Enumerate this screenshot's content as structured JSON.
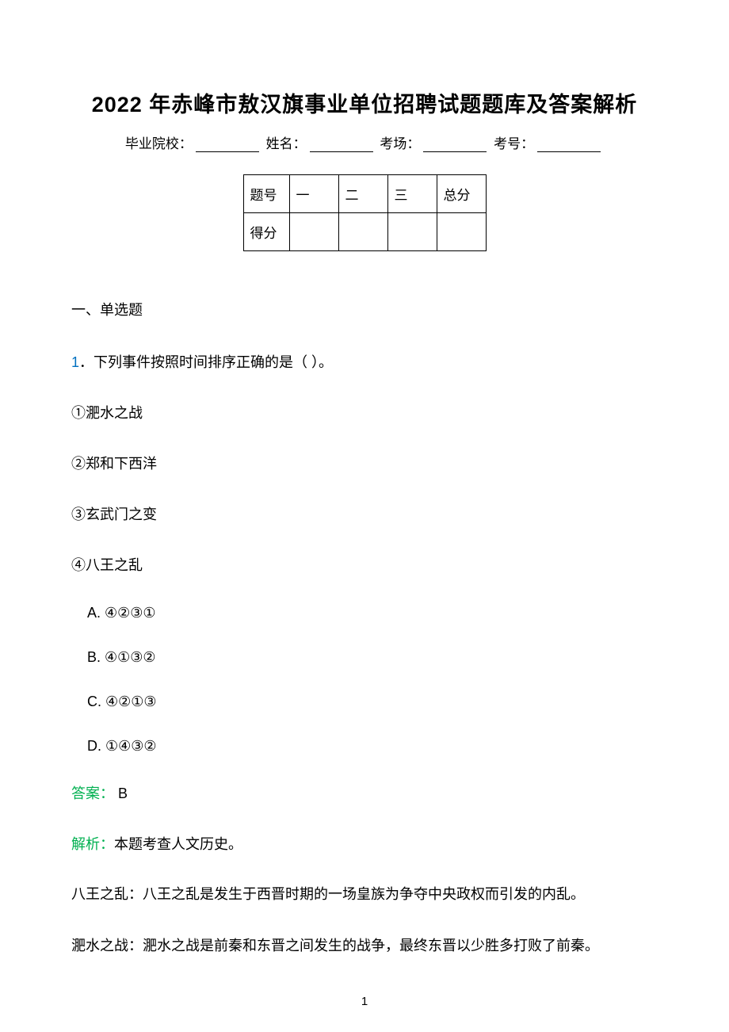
{
  "title": "2022 年赤峰市敖汉旗事业单位招聘试题题库及答案解析",
  "info_labels": {
    "school": "毕业院校：",
    "name": "姓名：",
    "room": "考场：",
    "id": "考号："
  },
  "score_table": {
    "row1": [
      "题号",
      "一",
      "二",
      "三",
      "总分"
    ],
    "row2": [
      "得分",
      "",
      "",
      "",
      ""
    ]
  },
  "section_header": "一、单选题",
  "question": {
    "number": "1",
    "separator": "．",
    "text": "下列事件按照时间排序正确的是（   ）。",
    "items": [
      "①淝水之战",
      "②郑和下西洋",
      "③玄武门之变",
      "④八王之乱"
    ],
    "options": [
      "A. ④②③①",
      "B. ④①③②",
      "C. ④②①③",
      "D. ①④③②"
    ]
  },
  "answer": {
    "label": "答案：",
    "value": " B"
  },
  "explanation": {
    "label": "解析：",
    "intro": "本题考查人文历史。",
    "paragraphs": [
      "八王之乱：八王之乱是发生于西晋时期的一场皇族为争夺中央政权而引发的内乱。",
      "淝水之战：淝水之战是前秦和东晋之间发生的战争，最终东晋以少胜多打败了前秦。"
    ]
  },
  "page_number": "1",
  "colors": {
    "question_num": "#0070c0",
    "label_green": "#00b050",
    "text": "#000000",
    "background": "#ffffff"
  },
  "typography": {
    "title_fontsize": 27,
    "body_fontsize": 18,
    "info_fontsize": 17
  }
}
